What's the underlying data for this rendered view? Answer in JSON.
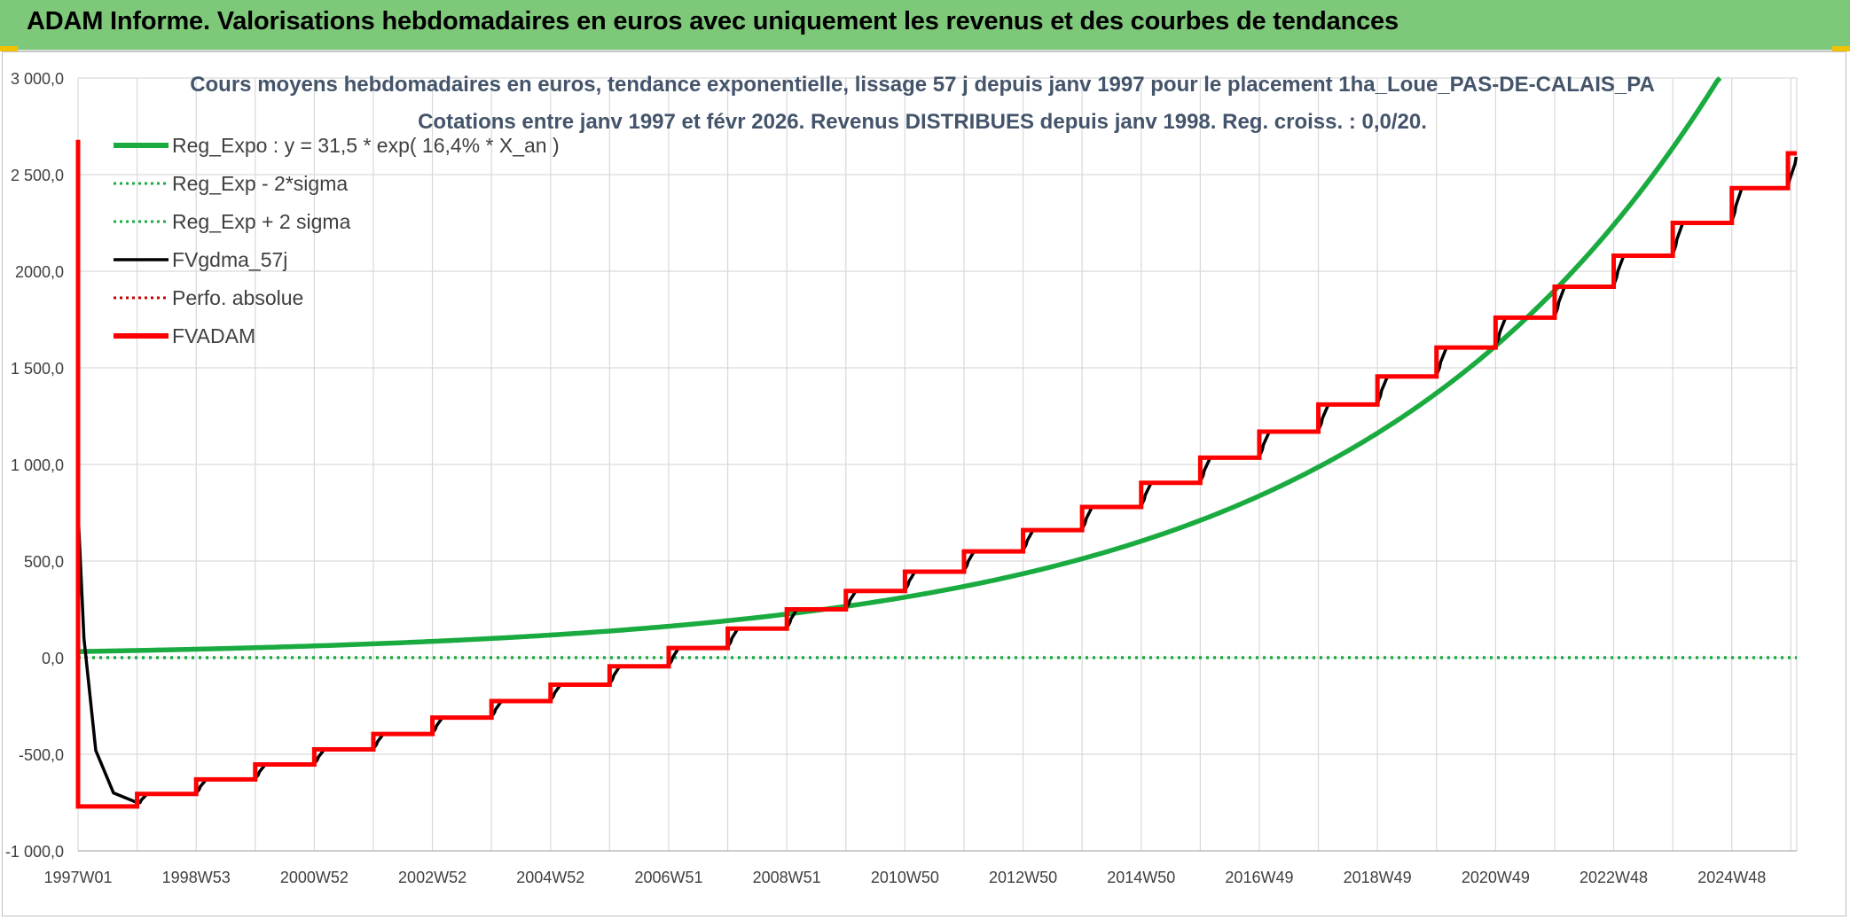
{
  "header": {
    "title": "ADAM Informe. Valorisations hebdomadaires en euros avec uniquement les revenus et des courbes de tendances"
  },
  "colors": {
    "header_bg": "#7ec87a",
    "reg_expo": "#1aab40",
    "fvgdma": "#000000",
    "fvadam": "#ff0000",
    "grid": "#d9d9d9"
  },
  "chart_data": {
    "type": "line",
    "title": "Cours moyens hebdomadaires en euros, tendance exponentielle, lissage 57 j depuis janv 1997 pour le placement 1ha_Loue_PAS-DE-CALAIS_PA",
    "subtitle": "Cotations entre janv 1997 et févr 2026. Revenus DISTRIBUES depuis janv 1998. Reg. croiss. : 0,0/20.",
    "ylim": [
      -1000,
      3000
    ],
    "y_ticks": [
      {
        "value": 3000,
        "label": "3 000,0"
      },
      {
        "value": 2500,
        "label": "2 500,0"
      },
      {
        "value": 2000,
        "label": "2000,0"
      },
      {
        "value": 1500,
        "label": "1 500,0"
      },
      {
        "value": 1000,
        "label": "1 000,0"
      },
      {
        "value": 500,
        "label": "500,0"
      },
      {
        "value": 0,
        "label": "0,0"
      },
      {
        "value": -500,
        "label": "-500,0"
      },
      {
        "value": -1000,
        "label": "-1 000,0"
      }
    ],
    "xlim": [
      1997.0,
      2026.1
    ],
    "x_ticks": [
      {
        "value": 1997.0,
        "label": "1997W01"
      },
      {
        "value": 1999.0,
        "label": "1998W53"
      },
      {
        "value": 2001.0,
        "label": "2000W52"
      },
      {
        "value": 2003.0,
        "label": "2002W52"
      },
      {
        "value": 2005.0,
        "label": "2004W52"
      },
      {
        "value": 2007.0,
        "label": "2006W51"
      },
      {
        "value": 2009.0,
        "label": "2008W51"
      },
      {
        "value": 2011.0,
        "label": "2010W50"
      },
      {
        "value": 2013.0,
        "label": "2012W50"
      },
      {
        "value": 2015.0,
        "label": "2014W50"
      },
      {
        "value": 2017.0,
        "label": "2016W49"
      },
      {
        "value": 2019.0,
        "label": "2018W49"
      },
      {
        "value": 2021.0,
        "label": "2020W49"
      },
      {
        "value": 2023.0,
        "label": "2022W48"
      },
      {
        "value": 2025.0,
        "label": "2024W48"
      }
    ],
    "legend_position": "top-left",
    "legend": [
      {
        "label": "Reg_Expo : y = 31,5 * exp( 16,4% *  X_an )",
        "color": "#1aab40",
        "style": "solid-thick"
      },
      {
        "label": "Reg_Exp - 2*sigma",
        "color": "#1aab40",
        "style": "dotted"
      },
      {
        "label": "Reg_Exp + 2 sigma",
        "color": "#1aab40",
        "style": "dotted"
      },
      {
        "label": "FVgdma_57j",
        "color": "#000000",
        "style": "solid"
      },
      {
        "label": "Perfo. absolue",
        "color": "#c00000",
        "style": "dotted"
      },
      {
        "label": "FVADAM",
        "color": "#ff0000",
        "style": "solid-thick"
      }
    ],
    "series": [
      {
        "name": "Reg_Expo : y = 31,5 * exp( 16,4% *  X_an )",
        "x": [
          1997.0,
          2000.0,
          2003.0,
          2006.0,
          2009.0,
          2011.0,
          2013.0,
          2015.0,
          2017.0,
          2019.0,
          2021.0,
          2022.0,
          2023.0,
          2024.0,
          2024.75
        ],
        "y": [
          31.5,
          51.6,
          84.5,
          138.3,
          226.4,
          314.0,
          435.0,
          604.0,
          837.0,
          1161.0,
          1610.0,
          1897.0,
          2235.0,
          2633.0,
          2980.0
        ]
      },
      {
        "name": "Reg_Exp - 2*sigma / Reg_Exp + 2 sigma",
        "x": [
          1997.0,
          2026.1
        ],
        "y": [
          0,
          0
        ]
      },
      {
        "name": "FVADAM",
        "x": [
          1997.0,
          1997.02,
          1997.04,
          1998.0,
          1999.0,
          2000.0,
          2001.0,
          2002.0,
          2003.0,
          2004.0,
          2005.0,
          2006.0,
          2007.0,
          2008.0,
          2009.0,
          2010.0,
          2011.0,
          2012.0,
          2013.0,
          2014.0,
          2015.0,
          2016.0,
          2017.0,
          2018.0,
          2019.0,
          2020.0,
          2021.0,
          2022.0,
          2023.0,
          2024.0,
          2025.0,
          2025.95,
          2026.1
        ],
        "y": [
          2680,
          -770,
          -770,
          -705,
          -630,
          -553,
          -475,
          -395,
          -310,
          -225,
          -140,
          -45,
          50,
          150,
          250,
          345,
          445,
          550,
          660,
          780,
          905,
          1035,
          1170,
          1310,
          1455,
          1605,
          1760,
          1920,
          2080,
          2250,
          2430,
          2610,
          2610
        ]
      },
      {
        "name": "FVgdma_57j",
        "x": [
          1997.0,
          1997.1,
          1997.3,
          1997.6,
          1998.0,
          1998.3,
          2026.1
        ],
        "y": [
          760,
          100,
          -480,
          -700,
          -750,
          -735,
          2580
        ]
      }
    ]
  }
}
